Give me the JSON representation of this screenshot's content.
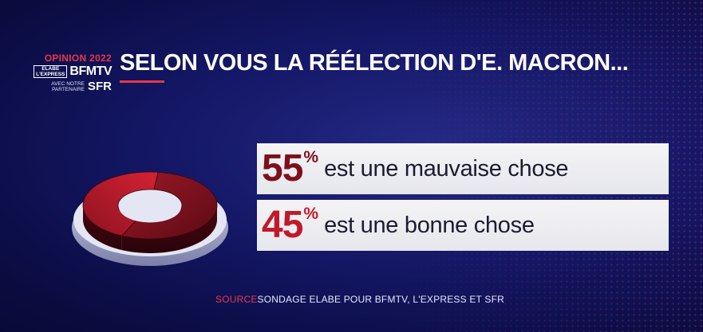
{
  "logo": {
    "opinion": "OPINION 2022",
    "elabe": "ELABE",
    "express": "L'EXPRESS",
    "bfmtv": "BFMTV",
    "partner_line1": "AVEC NOTRE",
    "partner_line2": "PARTENAIRE",
    "sfr": "SFR"
  },
  "title": "SELON VOUS LA RÉÉLECTION D'E. MACRON...",
  "source": {
    "label": "SOURCE",
    "text": "SONDAGE ELABE POUR BFMTV, L'EXPRESS ET SFR"
  },
  "colors": {
    "accent": "#e8374a",
    "dark_red": "#7e0f1b",
    "bright_red": "#c0192a",
    "background": "#141765"
  },
  "chart_data": {
    "type": "pie",
    "title": "SELON VOUS LA RÉÉLECTION D'E. MACRON...",
    "categories": [
      "est une mauvaise chose",
      "est une bonne chose"
    ],
    "values": [
      55,
      45
    ],
    "unit": "%",
    "slices": [
      {
        "label": "est une mauvaise chose",
        "value": 55,
        "display": "55",
        "color": "#7e0f1b"
      },
      {
        "label": "est une bonne chose",
        "value": 45,
        "display": "45",
        "color": "#c0192a"
      }
    ],
    "style": "3d-donut"
  }
}
